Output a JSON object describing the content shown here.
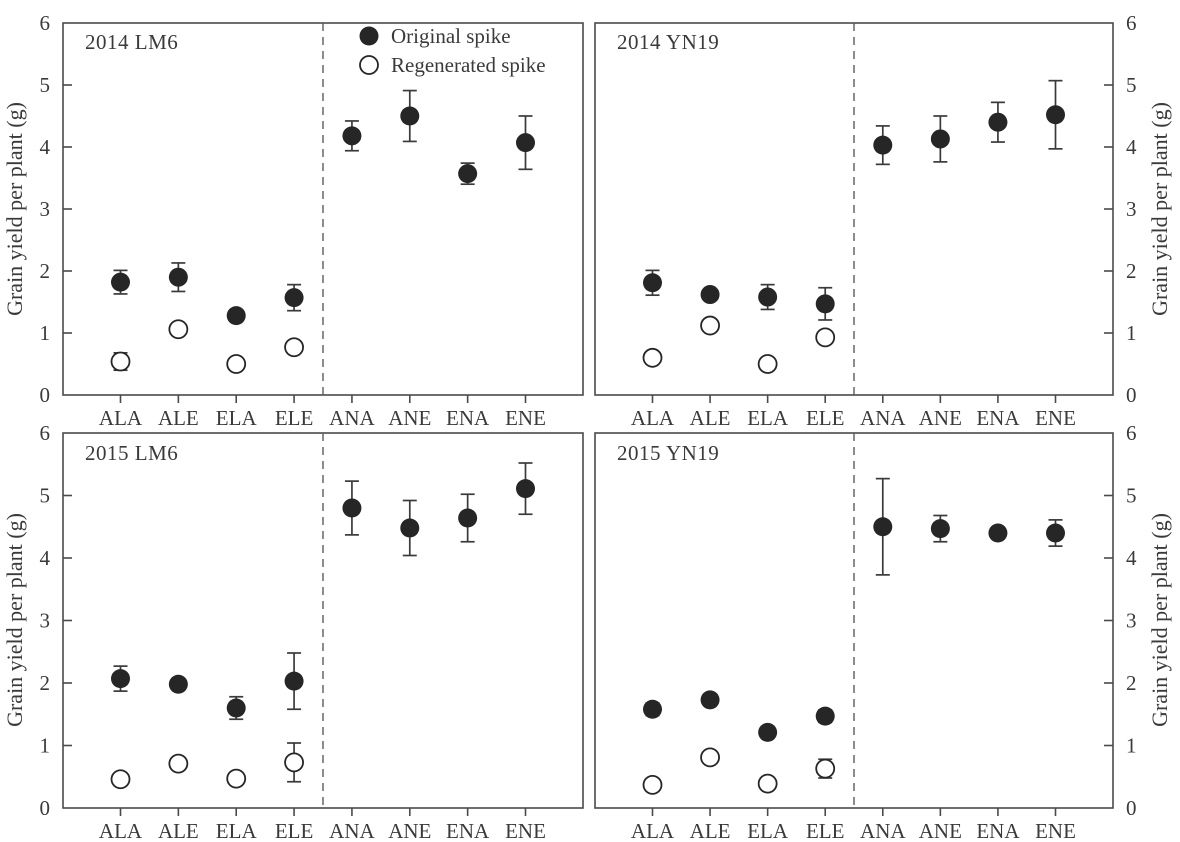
{
  "figure": {
    "ylabel": "Grain yield per plant (g)",
    "categories": [
      "ALA",
      "ALE",
      "ELA",
      "ELE",
      "ANA",
      "ANE",
      "ENA",
      "ENE"
    ],
    "yticks": [
      0,
      1,
      2,
      3,
      4,
      5,
      6
    ],
    "ylim": [
      0,
      6
    ],
    "legend": {
      "items": [
        {
          "label": "Original spike",
          "marker": "filled"
        },
        {
          "label": "Regenerated spike",
          "marker": "open"
        }
      ]
    },
    "colors": {
      "marker": "#262626",
      "marker_open_fill": "#ffffff",
      "axis": "#4a4a4a",
      "error_bar": "#3a3a3a",
      "divider": "#5a5a5a",
      "text": "#3a3a3a"
    }
  },
  "chart_data": [
    {
      "type": "scatter",
      "title": "2014 LM6",
      "yaxis_side": "left",
      "ylim": [
        0,
        6
      ],
      "xlabel": "",
      "ylabel": "Grain yield per plant (g)",
      "categories": [
        "ALA",
        "ALE",
        "ELA",
        "ELE",
        "ANA",
        "ANE",
        "ENA",
        "ENE"
      ],
      "divider_after_index": 3,
      "show_legend": true,
      "series": [
        {
          "name": "Original spike",
          "marker": "filled",
          "values": [
            1.82,
            1.9,
            1.28,
            1.57,
            4.18,
            4.5,
            3.57,
            4.07
          ],
          "errors": [
            0.19,
            0.23,
            0,
            0.21,
            0.24,
            0.41,
            0.17,
            0.43
          ]
        },
        {
          "name": "Regenerated spike",
          "marker": "open",
          "values": [
            0.54,
            1.06,
            0.5,
            0.77,
            null,
            null,
            null,
            null
          ],
          "errors": [
            0.14,
            0,
            0,
            0,
            null,
            null,
            null,
            null
          ]
        }
      ]
    },
    {
      "type": "scatter",
      "title": "2014 YN19",
      "yaxis_side": "right",
      "ylim": [
        0,
        6
      ],
      "xlabel": "",
      "ylabel": "Grain yield per plant (g)",
      "categories": [
        "ALA",
        "ALE",
        "ELA",
        "ELE",
        "ANA",
        "ANE",
        "ENA",
        "ENE"
      ],
      "divider_after_index": 3,
      "show_legend": false,
      "series": [
        {
          "name": "Original spike",
          "marker": "filled",
          "values": [
            1.81,
            1.62,
            1.58,
            1.47,
            4.03,
            4.13,
            4.4,
            4.52
          ],
          "errors": [
            0.2,
            0,
            0.2,
            0.26,
            0.31,
            0.37,
            0.32,
            0.55
          ]
        },
        {
          "name": "Regenerated spike",
          "marker": "open",
          "values": [
            0.6,
            1.12,
            0.5,
            0.93,
            null,
            null,
            null,
            null
          ],
          "errors": [
            0,
            0.08,
            0,
            0,
            null,
            null,
            null,
            null
          ]
        }
      ]
    },
    {
      "type": "scatter",
      "title": "2015 LM6",
      "yaxis_side": "left",
      "ylim": [
        0,
        6
      ],
      "xlabel": "",
      "ylabel": "Grain yield per plant (g)",
      "categories": [
        "ALA",
        "ALE",
        "ELA",
        "ELE",
        "ANA",
        "ANE",
        "ENA",
        "ENE"
      ],
      "divider_after_index": 3,
      "show_legend": false,
      "series": [
        {
          "name": "Original spike",
          "marker": "filled",
          "values": [
            2.07,
            1.98,
            1.6,
            2.03,
            4.8,
            4.48,
            4.64,
            5.11
          ],
          "errors": [
            0.2,
            0,
            0.18,
            0.45,
            0.43,
            0.44,
            0.38,
            0.41
          ]
        },
        {
          "name": "Regenerated spike",
          "marker": "open",
          "values": [
            0.46,
            0.71,
            0.47,
            0.73,
            null,
            null,
            null,
            null
          ],
          "errors": [
            0.1,
            0,
            0,
            0.31,
            null,
            null,
            null,
            null
          ]
        }
      ]
    },
    {
      "type": "scatter",
      "title": "2015 YN19",
      "yaxis_side": "right",
      "ylim": [
        0,
        6
      ],
      "xlabel": "",
      "ylabel": "Grain yield per plant (g)",
      "categories": [
        "ALA",
        "ALE",
        "ELA",
        "ELE",
        "ANA",
        "ANE",
        "ENA",
        "ENE"
      ],
      "divider_after_index": 3,
      "show_legend": false,
      "series": [
        {
          "name": "Original spike",
          "marker": "filled",
          "values": [
            1.58,
            1.73,
            1.21,
            1.47,
            4.5,
            4.47,
            4.4,
            4.4
          ],
          "errors": [
            0.1,
            0,
            0.08,
            0.1,
            0.77,
            0.21,
            0,
            0.21
          ]
        },
        {
          "name": "Regenerated spike",
          "marker": "open",
          "values": [
            0.37,
            0.81,
            0.39,
            0.63,
            null,
            null,
            null,
            null
          ],
          "errors": [
            0,
            0,
            0,
            0.15,
            null,
            null,
            null,
            null
          ]
        }
      ]
    }
  ]
}
